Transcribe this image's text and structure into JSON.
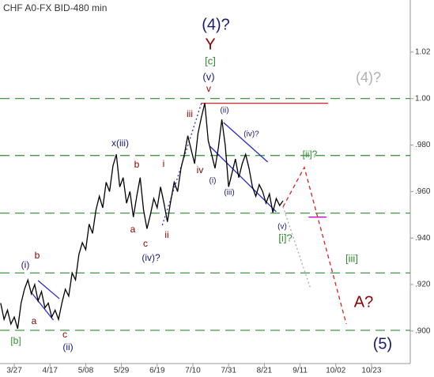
{
  "chart_data": {
    "type": "line",
    "title": "CHF A0-FX BID-480 min",
    "x": [
      -8,
      -6,
      -4,
      -2,
      0,
      2,
      4,
      6,
      8,
      10,
      12,
      14,
      16,
      18,
      20,
      22,
      24,
      26,
      28,
      30,
      32,
      34,
      36,
      38,
      40,
      42,
      44,
      46,
      48,
      50,
      52,
      54,
      56,
      58,
      60,
      62,
      64,
      66,
      68,
      70,
      72,
      74,
      76,
      78,
      80,
      82,
      84,
      86,
      88,
      90,
      92,
      94,
      96,
      98,
      100,
      102,
      104,
      106,
      108,
      110,
      112,
      114,
      116,
      118,
      120,
      122,
      124,
      126,
      128,
      130,
      132,
      134,
      136,
      138,
      140,
      142,
      144,
      146,
      148,
      150,
      152,
      154,
      156,
      158
    ],
    "series": [
      {
        "color": "#000000",
        "values": [
          0.912,
          0.905,
          0.909,
          0.903,
          0.906,
          0.901,
          0.912,
          0.918,
          0.922,
          0.916,
          0.92,
          0.913,
          0.917,
          0.91,
          0.912,
          0.906,
          0.909,
          0.905,
          0.912,
          0.918,
          0.915,
          0.925,
          0.922,
          0.933,
          0.938,
          0.935,
          0.946,
          0.942,
          0.952,
          0.958,
          0.953,
          0.964,
          0.96,
          0.971,
          0.976,
          0.962,
          0.966,
          0.955,
          0.96,
          0.949,
          0.958,
          0.966,
          0.952,
          0.944,
          0.95,
          0.957,
          0.953,
          0.962,
          0.955,
          0.947,
          0.956,
          0.964,
          0.96,
          0.97,
          0.976,
          0.984,
          0.978,
          0.972,
          0.985,
          0.992,
          0.998,
          0.982,
          0.976,
          0.97,
          0.979,
          0.991,
          0.98,
          0.962,
          0.968,
          0.974,
          0.966,
          0.972,
          0.976,
          0.97,
          0.962,
          0.958,
          0.963,
          0.96,
          0.955,
          0.959,
          0.951,
          0.957,
          0.954,
          0.956
        ]
      }
    ],
    "xlim": [
      -8.4,
      232.8
    ],
    "xticks": [
      {
        "value": 0,
        "label": "3/27"
      },
      {
        "value": 21,
        "label": "4/17"
      },
      {
        "value": 42,
        "label": "5/08"
      },
      {
        "value": 63,
        "label": "5/29"
      },
      {
        "value": 84,
        "label": "6/19"
      },
      {
        "value": 105,
        "label": "7/10"
      },
      {
        "value": 126,
        "label": "7/31"
      },
      {
        "value": 147,
        "label": "8/21"
      },
      {
        "value": 168,
        "label": "9/11"
      },
      {
        "value": 189,
        "label": "10/02"
      },
      {
        "value": 210,
        "label": "10/23"
      }
    ],
    "ylim": [
      0.886,
      1.0424
    ],
    "yticks": [
      1.02,
      {
        "value": 1,
        "label": "1.00"
      },
      {
        "value": 0.98,
        "label": ".980"
      },
      {
        "value": 0.96,
        "label": ".960"
      },
      {
        "value": 0.94,
        "label": ".940"
      },
      {
        "value": 0.92,
        "label": ".920"
      },
      {
        "value": 0.9,
        "label": ".900"
      }
    ],
    "levels": {
      "color": "#2e8b2e",
      "values": [
        1.0,
        0.9755,
        0.9507,
        0.925,
        0.9003
      ]
    },
    "lines": [
      {
        "color": "#dd2222",
        "style": "solid",
        "x": [
          110,
          184.5
        ],
        "y": [
          0.998,
          0.998
        ]
      },
      {
        "color": "#cc00cc",
        "style": "solid",
        "x": [
          173,
          183.5
        ],
        "y": [
          0.949,
          0.949
        ]
      },
      {
        "color": "#dd2222",
        "style": "dashed",
        "x": [
          158,
          170.5,
          195.2
        ],
        "y": [
          0.9534,
          0.9704,
          0.903
        ]
      },
      {
        "color": "#aaaaaa",
        "style": "dotted",
        "x": [
          158,
          174.3
        ],
        "y": [
          0.9534,
          0.918
        ]
      },
      {
        "color": "#2a2acc",
        "style": "solid",
        "x": [
          123,
          149
        ],
        "y": [
          0.9897,
          0.9727
        ]
      },
      {
        "color": "#2a2acc",
        "style": "solid",
        "x": [
          115,
          154
        ],
        "y": [
          0.9795,
          0.9513
        ]
      },
      {
        "color": "#2a2acc",
        "style": "solid",
        "x": [
          14,
          26.5
        ],
        "y": [
          0.9217,
          0.9139
        ]
      },
      {
        "color": "#2a2acc",
        "style": "solid",
        "x": [
          10,
          23
        ],
        "y": [
          0.9166,
          0.9047
        ]
      },
      {
        "color": "#2a2acc",
        "style": "dotted",
        "x": [
          87,
          110
        ],
        "y": [
          0.9455,
          0.998
        ]
      }
    ],
    "annotations": [
      {
        "text": "(4)?",
        "color": "#1a1a6e"
      },
      {
        "text": "Y",
        "color": "#8b0000"
      },
      {
        "text": "[c]",
        "color": "#2e8b2e"
      },
      {
        "text": "(v)",
        "color": "#1a1a6e"
      },
      {
        "text": "v",
        "color": "#8b0000"
      },
      {
        "text": "(4)?",
        "color": "#b0b0b0"
      },
      {
        "text": "iii",
        "color": "#8b0000"
      },
      {
        "text": "(ii)",
        "color": "#1a1a6e"
      },
      {
        "text": "(iv)?",
        "color": "#1a1a6e"
      },
      {
        "text": "i",
        "color": "#8b0000"
      },
      {
        "text": "x(iii)",
        "color": "#1a1a6e"
      },
      {
        "text": "b",
        "color": "#8b0000"
      },
      {
        "text": "iv",
        "color": "#8b0000"
      },
      {
        "text": "[ii]?",
        "color": "#2e8b2e"
      },
      {
        "text": "(i)",
        "color": "#1a1a6e"
      },
      {
        "text": "(iii)",
        "color": "#1a1a6e"
      },
      {
        "text": "a",
        "color": "#8b0000"
      },
      {
        "text": "c",
        "color": "#8b0000"
      },
      {
        "text": "ii",
        "color": "#8b0000"
      },
      {
        "text": "(iv)?",
        "color": "#1a1a6e"
      },
      {
        "text": "(v)",
        "color": "#1a1a6e"
      },
      {
        "text": "[i]?",
        "color": "#2e8b2e"
      },
      {
        "text": "[iii]",
        "color": "#2e8b2e"
      },
      {
        "text": "(i)",
        "color": "#1a1a6e"
      },
      {
        "text": "b",
        "color": "#8b0000"
      },
      {
        "text": "a",
        "color": "#8b0000"
      },
      {
        "text": "c",
        "color": "#8b0000"
      },
      {
        "text": "(ii)",
        "color": "#1a1a6e"
      },
      {
        "text": "[b]",
        "color": "#2e8b2e"
      },
      {
        "text": "A?",
        "color": "#8b0000"
      },
      {
        "text": "(5)",
        "color": "#1a1a6e"
      }
    ]
  }
}
